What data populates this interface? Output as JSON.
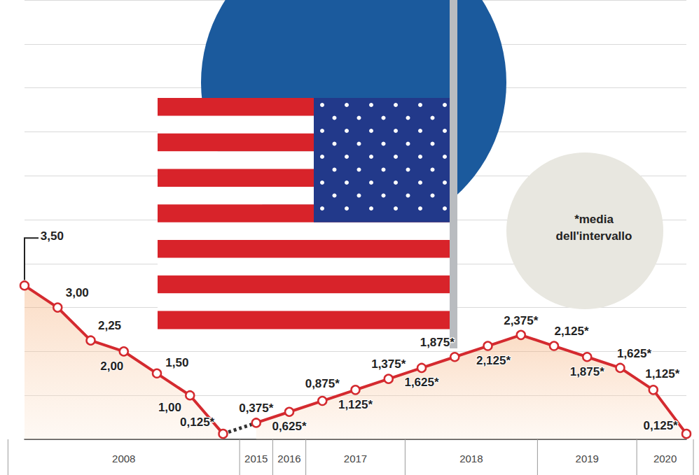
{
  "chart_data": {
    "type": "line",
    "categories": [
      "2008",
      "2008",
      "2008",
      "2008",
      "2008",
      "2008",
      "2008",
      "2015",
      "2016",
      "2017",
      "2017",
      "2017",
      "2018",
      "2018",
      "2018",
      "2018",
      "2019",
      "2019",
      "2019",
      "2020",
      "2020"
    ],
    "values": [
      3.5,
      3,
      2.25,
      2,
      1.5,
      1,
      0.125,
      0.375,
      0.625,
      0.875,
      1.125,
      1.375,
      1.625,
      1.875,
      2.125,
      2.375,
      2.125,
      1.875,
      1.625,
      1.125,
      0.125
    ],
    "value_labels": [
      "3,50",
      "3,00",
      "2,25",
      "2,00",
      "1,50",
      "1,00",
      "0,125*",
      "0,375*",
      "0,625*",
      "0,875*",
      "1,125*",
      "1,375*",
      "1,625*",
      "1,875*",
      "2,125*",
      "2,375*",
      "2,125*",
      "1,875*",
      "1,625*",
      "1,125*",
      "0,125*"
    ],
    "annotation": "*media dell'intervallo",
    "color": "#d42a2f",
    "marker": "circle",
    "ylim": [
      0,
      10
    ],
    "yticks": [
      0,
      1,
      2,
      3,
      4,
      5,
      6,
      7,
      8,
      9,
      10
    ],
    "grid": true,
    "data_labels": true,
    "tick_labels": "x"
  }
}
